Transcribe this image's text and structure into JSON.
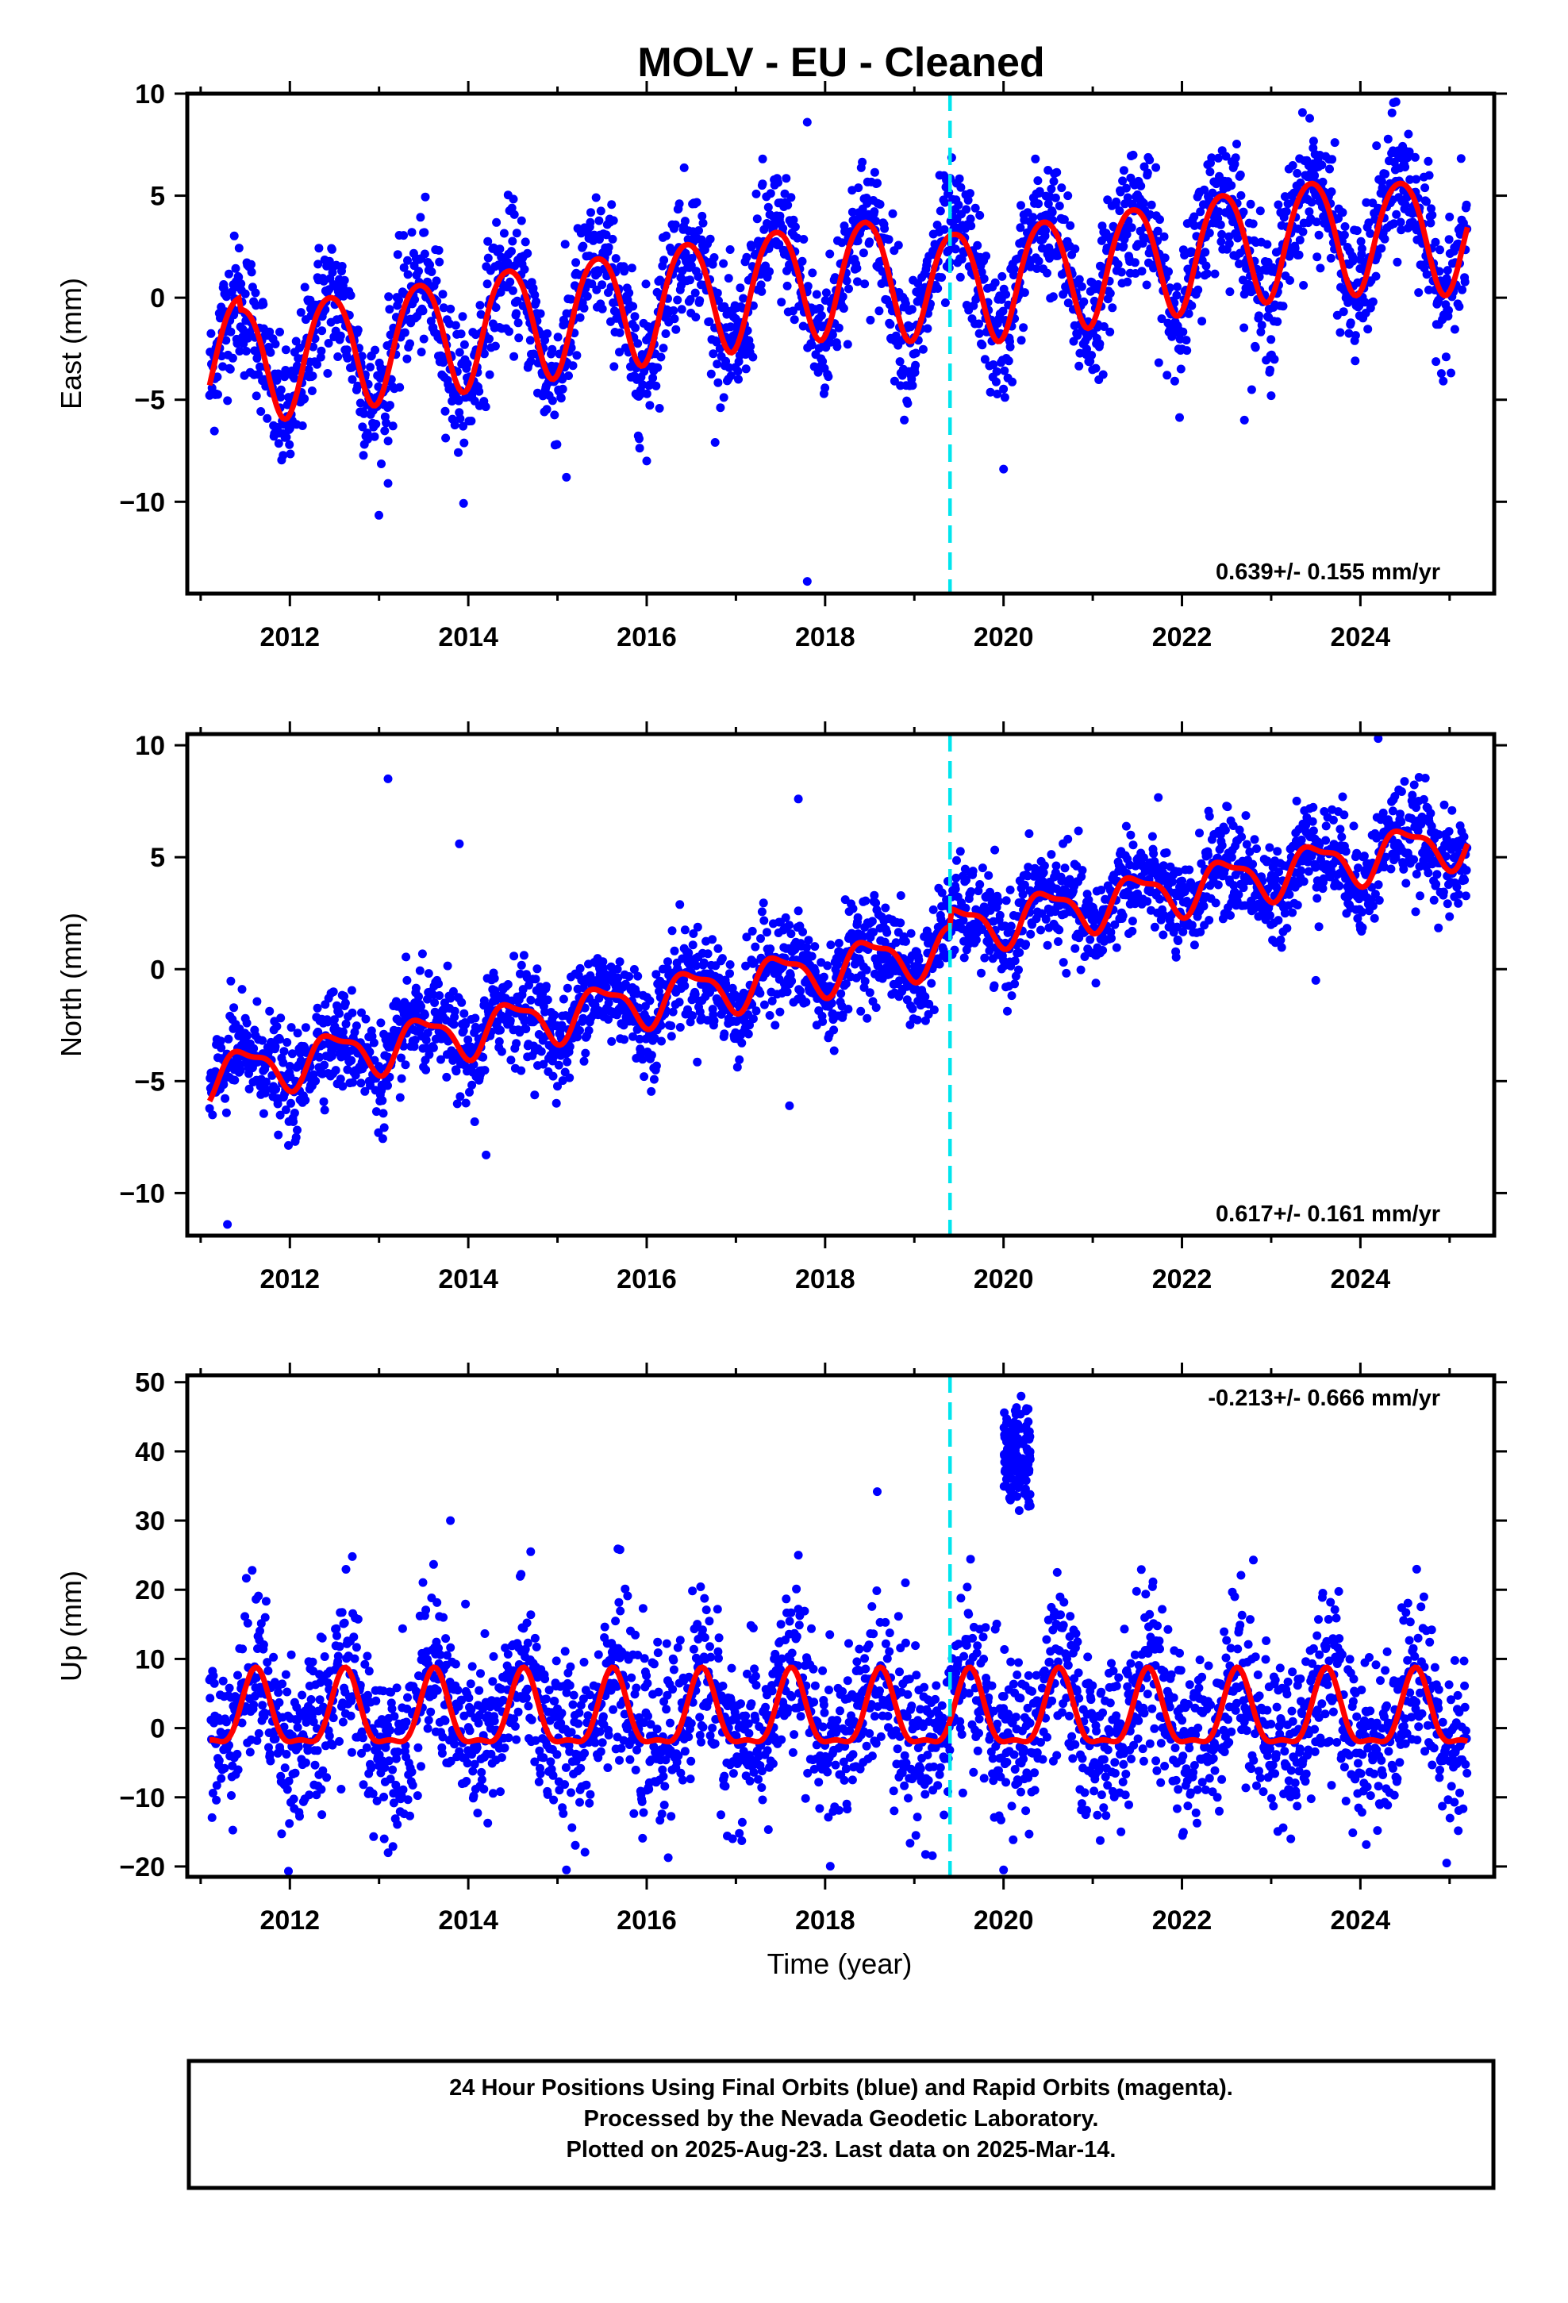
{
  "title": "MOLV  - EU - Cleaned",
  "footer": {
    "line1": "24 Hour Positions Using Final Orbits (blue) and Rapid Orbits (magenta).",
    "line2": "Processed by the Nevada Geodetic Laboratory.",
    "line3": "Plotted on 2025-Aug-23. Last data on 2025-Mar-14."
  },
  "colors": {
    "points": "#0000ff",
    "fit": "#ff0000",
    "event_line": "#00e5ee",
    "frame": "#000000"
  },
  "chart_data": [
    {
      "type": "scatter",
      "ylabel": "East (mm)",
      "xlabel": "",
      "xlim": [
        2010.85,
        2025.5
      ],
      "ylim": [
        -14.5,
        10.0
      ],
      "x_ticks": [
        "2012",
        "2014",
        "2016",
        "2018",
        "2020",
        "2022",
        "2024"
      ],
      "y_ticks": [
        "10",
        "5",
        "0",
        "-5",
        "-10"
      ],
      "rate_label": "0.639+/- 0.155 mm/yr",
      "rate_position": "bottom-right",
      "event_line_x": 2019.4,
      "data_span": [
        2011.1,
        2025.2
      ],
      "fit": {
        "start_value": -5.0,
        "end_value": 3.8,
        "annual_amplitude": 2.9,
        "peak_months": [
          "Jun 2012",
          "Jun 2013",
          "Jun 2014",
          "Jun 2015",
          "Jun 2016",
          "Jun 2017",
          "Jun 2018",
          "Jun 2019",
          "Jun 2020",
          "Jun 2021",
          "Jun 2022",
          "Jun 2023",
          "Jun 2024"
        ],
        "peak_values": [
          -0.3,
          0.3,
          0.9,
          1.6,
          2.2,
          2.9,
          3.5,
          4.0,
          3.4,
          4.0,
          4.6,
          5.3,
          5.9
        ],
        "trough_values": [
          -6.0,
          -5.3,
          -4.7,
          -4.0,
          -3.4,
          -2.7,
          -2.1,
          -1.5,
          -2.2,
          -1.5,
          -0.9,
          -0.3,
          0.4
        ]
      },
      "scatter_spread": 1.6,
      "outliers": [
        [
          2012.0,
          -6.4
        ],
        [
          2013.1,
          -9.1
        ],
        [
          2015.1,
          -8.8
        ],
        [
          2016.0,
          -8.0
        ],
        [
          2017.8,
          8.6
        ],
        [
          2017.3,
          6.8
        ],
        [
          2017.8,
          -13.9
        ],
        [
          2020.0,
          -8.4
        ],
        [
          2022.7,
          -6.0
        ],
        [
          2023.0,
          -4.8
        ],
        [
          2024.4,
          9.6
        ]
      ]
    },
    {
      "type": "scatter",
      "ylabel": "North (mm)",
      "xlabel": "",
      "xlim": [
        2010.85,
        2025.5
      ],
      "ylim": [
        -11.9,
        10.5
      ],
      "x_ticks": [
        "2012",
        "2014",
        "2016",
        "2018",
        "2020",
        "2022",
        "2024"
      ],
      "y_ticks": [
        "10",
        "5",
        "0",
        "-5",
        "-10"
      ],
      "rate_label": "0.617+/- 0.161 mm/yr",
      "rate_position": "bottom-right",
      "event_line_x": 2019.4,
      "data_span": [
        2011.1,
        2025.2
      ],
      "fit": {
        "start_value": -4.8,
        "end_value": 5.0,
        "annual_amplitude": 1.0,
        "peak_values": [
          -3.5,
          -2.8,
          -2.3,
          -2.0,
          -1.5,
          -1.0,
          -0.3,
          0.3,
          2.6,
          3.4,
          4.0,
          4.5,
          5.2,
          5.9
        ],
        "trough_values": [
          -5.5,
          -4.8,
          -4.0,
          -3.5,
          -3.2,
          -2.8,
          -2.3,
          -1.7,
          -1.1,
          0.8,
          1.8,
          2.5,
          3.0,
          3.8
        ]
      },
      "scatter_spread": 1.1,
      "outliers": [
        [
          2011.3,
          -11.4
        ],
        [
          2013.1,
          8.5
        ],
        [
          2013.9,
          5.6
        ],
        [
          2014.2,
          -8.3
        ],
        [
          2017.7,
          7.6
        ],
        [
          2017.6,
          -6.1
        ],
        [
          2024.2,
          10.3
        ],
        [
          2023.5,
          -0.5
        ]
      ]
    },
    {
      "type": "scatter",
      "ylabel": "Up (mm)",
      "xlabel": "Time (year)",
      "xlim": [
        2010.85,
        2025.5
      ],
      "ylim": [
        -21.5,
        51.0
      ],
      "x_ticks": [
        "2012",
        "2014",
        "2016",
        "2018",
        "2020",
        "2022",
        "2024"
      ],
      "y_ticks": [
        "50",
        "40",
        "30",
        "20",
        "10",
        "0",
        "-10",
        "-20"
      ],
      "rate_label": "-0.213+/- 0.666 mm/yr",
      "rate_position": "top-right",
      "event_line_x": 2019.4,
      "data_span": [
        2011.1,
        2025.2
      ],
      "fit": {
        "annual_amplitude": 5.0,
        "peak_month": "Aug",
        "peak_value": 7.0,
        "trough_value": -3.5
      },
      "scatter_spread": 6.0,
      "anomaly_cluster": {
        "x_range": [
          2020.0,
          2020.3
        ],
        "y_range": [
          30,
          49
        ]
      },
      "outliers": [
        [
          2013.8,
          30.0
        ],
        [
          2014.7,
          25.5
        ],
        [
          2012.7,
          24.8
        ],
        [
          2015.7,
          25.8
        ],
        [
          2017.7,
          25.0
        ],
        [
          2022.8,
          24.3
        ],
        [
          2015.1,
          -20.5
        ],
        [
          2020.0,
          -20.5
        ],
        [
          2018.9,
          21.0
        ]
      ]
    }
  ]
}
